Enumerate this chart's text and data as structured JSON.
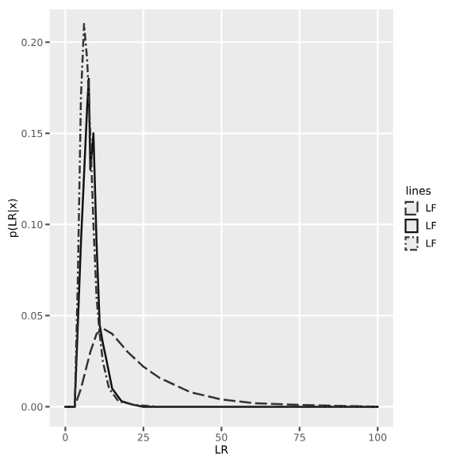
{
  "chart_data": {
    "type": "line",
    "xlabel": "LR",
    "ylabel": "p(LR|x)",
    "legend_title": "lines",
    "xlim": [
      -5,
      105
    ],
    "ylim": [
      -0.011,
      0.218
    ],
    "xticks": [
      0,
      25,
      50,
      75,
      100
    ],
    "yticks": [
      {
        "value": 0,
        "label": "0.00"
      },
      {
        "value": 0.05,
        "label": "0.05"
      },
      {
        "value": 0.1,
        "label": "0.10"
      },
      {
        "value": 0.15,
        "label": "0.15"
      },
      {
        "value": 0.2,
        "label": "0.20"
      }
    ],
    "grid": true,
    "legend": "right",
    "series": [
      {
        "name": "LF",
        "color": "#333333",
        "line_style": "dashed",
        "x": [
          0,
          3,
          5,
          8,
          10,
          12,
          15,
          20,
          25,
          30,
          40,
          50,
          60,
          75,
          100
        ],
        "values": [
          0,
          0,
          0.01,
          0.03,
          0.04,
          0.043,
          0.04,
          0.03,
          0.022,
          0.016,
          0.008,
          0.004,
          0.002,
          0.001,
          0
        ]
      },
      {
        "name": "LF",
        "color": "#111111",
        "line_style": "solid",
        "x": [
          0,
          3,
          5,
          7,
          7.5,
          8,
          9,
          10,
          11,
          12,
          13,
          15,
          18,
          22,
          25,
          100
        ],
        "values": [
          0,
          0,
          0.09,
          0.165,
          0.18,
          0.13,
          0.15,
          0.09,
          0.045,
          0.035,
          0.027,
          0.01,
          0.003,
          0.001,
          0,
          0
        ]
      },
      {
        "name": "LF",
        "color": "#333333",
        "line_style": "dotted",
        "x": [
          0,
          3,
          4,
          5,
          6,
          7,
          8,
          9,
          10,
          11,
          12,
          14,
          17,
          22,
          30,
          100
        ],
        "values": [
          0,
          0,
          0.07,
          0.17,
          0.21,
          0.19,
          0.15,
          0.1,
          0.06,
          0.04,
          0.025,
          0.01,
          0.003,
          0.001,
          0,
          0
        ]
      }
    ]
  }
}
